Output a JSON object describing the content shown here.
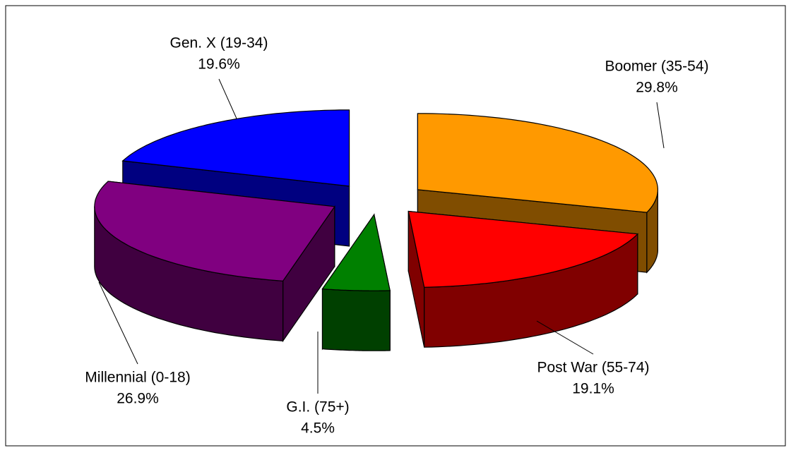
{
  "chart_data": {
    "type": "pie",
    "style": "3d-exploded",
    "categories": [
      "Boomer (35-54)",
      "Post War (55-74)",
      "G.I. (75+)",
      "Millennial (0-18)",
      "Gen. X (19-34)"
    ],
    "values": [
      29.8,
      19.1,
      4.5,
      26.9,
      19.6
    ],
    "value_labels": [
      "29.8%",
      "19.1%",
      "4.5%",
      "26.9%",
      "19.6%"
    ],
    "colors": [
      "#ff9900",
      "#ff0000",
      "#008000",
      "#800080",
      "#0000ff"
    ]
  }
}
